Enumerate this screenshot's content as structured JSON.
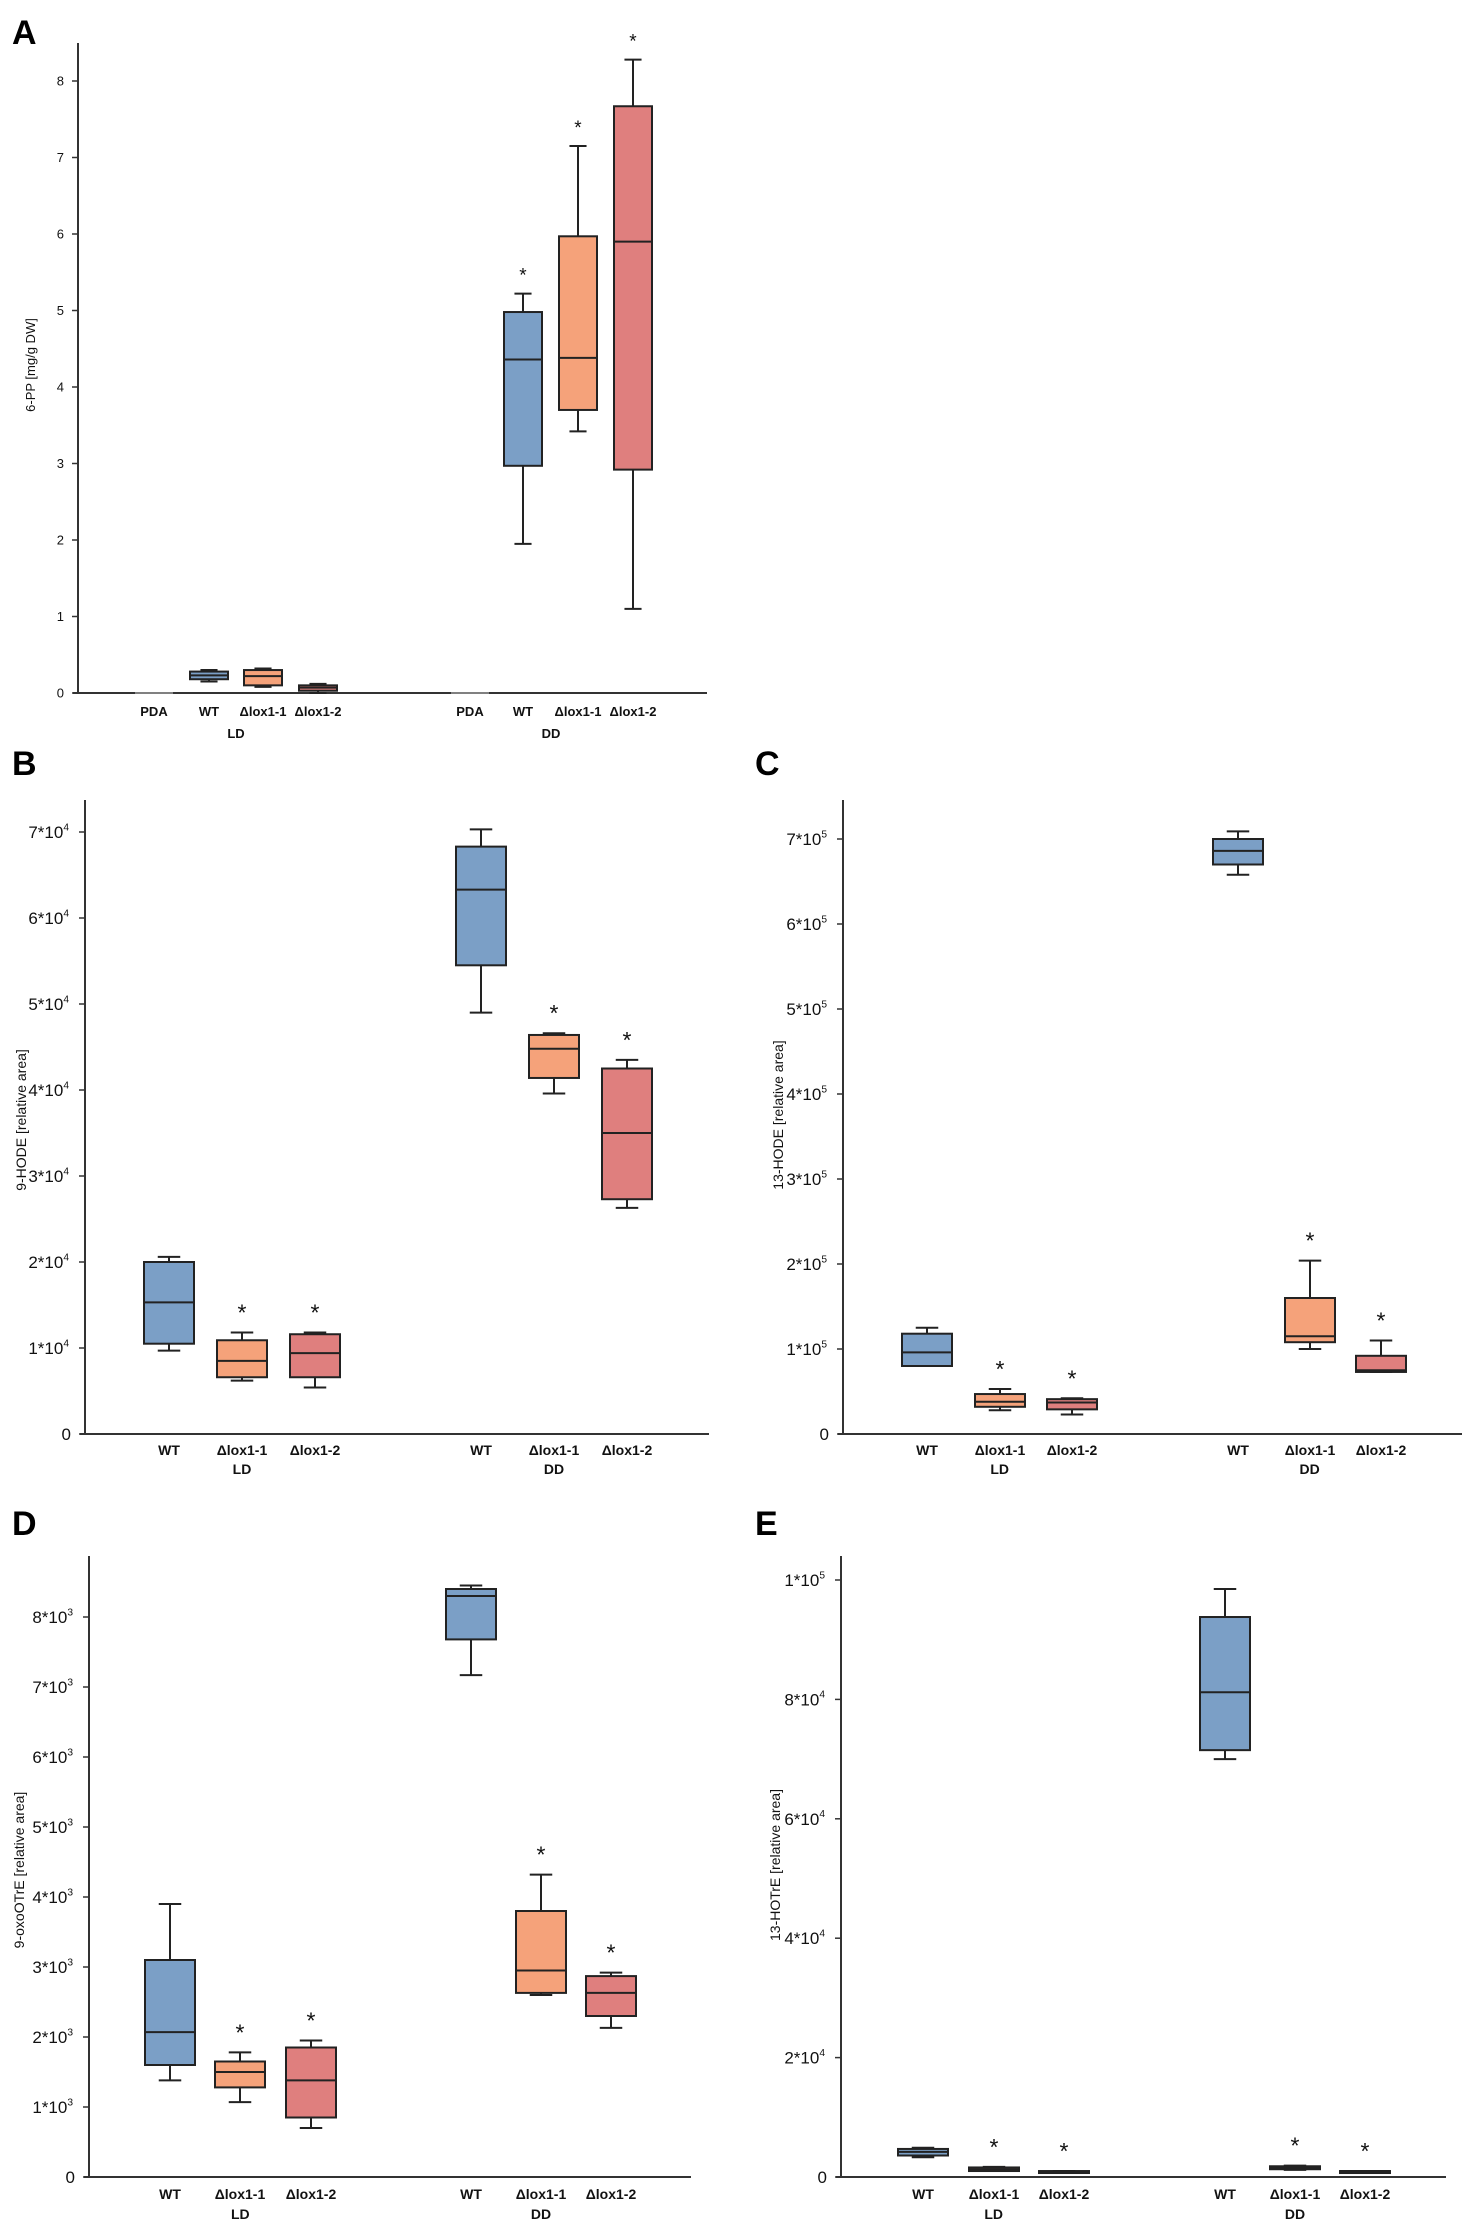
{
  "colors": {
    "WT": "#7b9fc6",
    "lox1-1": "#f5a27a",
    "lox1-2": "#df7f7e",
    "PDA": "#999999"
  },
  "chart_data": [
    {
      "panel": "A",
      "type": "box",
      "ylabel": "6-PP [mg/g DW]",
      "ylim": [
        0,
        8.5
      ],
      "ticks": [
        0,
        1,
        2,
        3,
        4,
        5,
        6,
        7,
        8
      ],
      "tick_labels": [
        "0",
        "1",
        "2",
        "3",
        "4",
        "5",
        "6",
        "7",
        "8"
      ],
      "groups": [
        {
          "label": "LD",
          "boxes": [
            {
              "name": "PDA",
              "label": "PDA",
              "color": "PDA",
              "stats": [
                0,
                0,
                0,
                0,
                0
              ],
              "sig": false
            },
            {
              "name": "WT",
              "label": "WT",
              "color": "WT",
              "stats": [
                0.15,
                0.18,
                0.23,
                0.28,
                0.3
              ],
              "sig": false
            },
            {
              "name": "lox1-1",
              "label": "Δlox1-1",
              "color": "lox1-1",
              "stats": [
                0.08,
                0.1,
                0.22,
                0.3,
                0.32
              ],
              "sig": false
            },
            {
              "name": "lox1-2",
              "label": "Δlox1-2",
              "color": "lox1-2",
              "stats": [
                0.0,
                0.03,
                0.07,
                0.1,
                0.12
              ],
              "sig": false
            }
          ]
        },
        {
          "label": "DD",
          "boxes": [
            {
              "name": "PDA",
              "label": "PDA",
              "color": "PDA",
              "stats": [
                0,
                0,
                0,
                0,
                0
              ],
              "sig": false
            },
            {
              "name": "WT",
              "label": "WT",
              "color": "WT",
              "stats": [
                1.95,
                2.97,
                4.36,
                4.98,
                5.22
              ],
              "sig": true
            },
            {
              "name": "lox1-1",
              "label": "Δlox1-1",
              "color": "lox1-1",
              "stats": [
                3.42,
                3.7,
                4.38,
                5.97,
                7.15
              ],
              "sig": true
            },
            {
              "name": "lox1-2",
              "label": "Δlox1-2",
              "color": "lox1-2",
              "stats": [
                1.1,
                2.92,
                5.9,
                7.67,
                8.28
              ],
              "sig": true
            }
          ]
        }
      ]
    },
    {
      "panel": "B",
      "type": "box",
      "ylabel": "9-HODE [relative area]",
      "ylim": [
        0,
        74000
      ],
      "ticks": [
        0,
        10000,
        20000,
        30000,
        40000,
        50000,
        60000,
        70000
      ],
      "tick_labels": [
        "0",
        "1*10^4",
        "2*10^4",
        "3*10^4",
        "4*10^4",
        "5*10^4",
        "6*10^4",
        "7*10^4"
      ],
      "groups": [
        {
          "label": "LD",
          "boxes": [
            {
              "name": "WT",
              "label": "WT",
              "color": "WT",
              "stats": [
                9700,
                10500,
                15300,
                20000,
                20600
              ],
              "sig": false
            },
            {
              "name": "lox1-1",
              "label": "Δlox1-1",
              "color": "lox1-1",
              "stats": [
                6200,
                6600,
                8500,
                10900,
                11800
              ],
              "sig": true
            },
            {
              "name": "lox1-2",
              "label": "Δlox1-2",
              "color": "lox1-2",
              "stats": [
                5400,
                6600,
                9400,
                11600,
                11800
              ],
              "sig": true
            }
          ]
        },
        {
          "label": "DD",
          "boxes": [
            {
              "name": "WT",
              "label": "WT",
              "color": "WT",
              "stats": [
                49000,
                54500,
                63300,
                68300,
                70300
              ],
              "sig": false
            },
            {
              "name": "lox1-1",
              "label": "Δlox1-1",
              "color": "lox1-1",
              "stats": [
                39600,
                41400,
                44800,
                46400,
                46600
              ],
              "sig": true
            },
            {
              "name": "lox1-2",
              "label": "Δlox1-2",
              "color": "lox1-2",
              "stats": [
                26300,
                27300,
                35000,
                42500,
                43500
              ],
              "sig": true
            }
          ]
        }
      ]
    },
    {
      "panel": "C",
      "type": "box",
      "ylabel": "13-HODE [relative area]",
      "ylim": [
        0,
        740000
      ],
      "ticks": [
        0,
        100000,
        200000,
        300000,
        400000,
        500000,
        600000,
        700000
      ],
      "tick_labels": [
        "0",
        "1*10^5",
        "2*10^5",
        "3*10^5",
        "4*10^5",
        "5*10^5",
        "6*10^5",
        "7*10^5"
      ],
      "groups": [
        {
          "label": "LD",
          "boxes": [
            {
              "name": "WT",
              "label": "WT",
              "color": "WT",
              "stats": [
                80000,
                80000,
                96000,
                118000,
                125000
              ],
              "sig": false
            },
            {
              "name": "lox1-1",
              "label": "Δlox1-1",
              "color": "lox1-1",
              "stats": [
                28000,
                32000,
                38000,
                47000,
                53000
              ],
              "sig": true
            },
            {
              "name": "lox1-2",
              "label": "Δlox1-2",
              "color": "lox1-2",
              "stats": [
                23000,
                29000,
                37000,
                41000,
                42000
              ],
              "sig": true
            }
          ]
        },
        {
          "label": "DD",
          "boxes": [
            {
              "name": "WT",
              "label": "WT",
              "color": "WT",
              "stats": [
                658000,
                670000,
                686000,
                700000,
                709000
              ],
              "sig": false
            },
            {
              "name": "lox1-1",
              "label": "Δlox1-1",
              "color": "lox1-1",
              "stats": [
                100000,
                108000,
                115000,
                160000,
                204000
              ],
              "sig": true
            },
            {
              "name": "lox1-2",
              "label": "Δlox1-2",
              "color": "lox1-2",
              "stats": [
                73000,
                73000,
                75000,
                92000,
                110000
              ],
              "sig": true
            }
          ]
        }
      ]
    },
    {
      "panel": "D",
      "type": "box",
      "ylabel": "9-oxoOTrE [relative area]",
      "ylim": [
        0,
        8800
      ],
      "ticks": [
        0,
        1000,
        2000,
        3000,
        4000,
        5000,
        6000,
        7000,
        8000
      ],
      "tick_labels": [
        "0",
        "1*10^3",
        "2*10^3",
        "3*10^3",
        "4*10^3",
        "5*10^3",
        "6*10^3",
        "7*10^3",
        "8*10^3"
      ],
      "groups": [
        {
          "label": "LD",
          "boxes": [
            {
              "name": "WT",
              "label": "WT",
              "color": "WT",
              "stats": [
                1380,
                1600,
                2070,
                3100,
                3900
              ],
              "sig": false
            },
            {
              "name": "lox1-1",
              "label": "Δlox1-1",
              "color": "lox1-1",
              "stats": [
                1070,
                1280,
                1500,
                1650,
                1780
              ],
              "sig": true
            },
            {
              "name": "lox1-2",
              "label": "Δlox1-2",
              "color": "lox1-2",
              "stats": [
                700,
                850,
                1380,
                1850,
                1950
              ],
              "sig": true
            }
          ]
        },
        {
          "label": "DD",
          "boxes": [
            {
              "name": "WT",
              "label": "WT",
              "color": "WT",
              "stats": [
                7170,
                7680,
                8300,
                8400,
                8450
              ],
              "sig": false
            },
            {
              "name": "lox1-1",
              "label": "Δlox1-1",
              "color": "lox1-1",
              "stats": [
                2600,
                2630,
                2950,
                3800,
                4320
              ],
              "sig": true
            },
            {
              "name": "lox1-2",
              "label": "Δlox1-2",
              "color": "lox1-2",
              "stats": [
                2130,
                2300,
                2630,
                2870,
                2920
              ],
              "sig": true
            }
          ]
        }
      ]
    },
    {
      "panel": "E",
      "type": "box",
      "ylabel": "13-HOTrE [relative area]",
      "ylim": [
        0,
        104000
      ],
      "ticks": [
        0,
        20000,
        40000,
        60000,
        80000,
        100000
      ],
      "tick_labels": [
        "0",
        "2*10^4",
        "4*10^4",
        "6*10^4",
        "8*10^4",
        "1*10^5"
      ],
      "groups": [
        {
          "label": "LD",
          "boxes": [
            {
              "name": "WT",
              "label": "WT",
              "color": "WT",
              "stats": [
                3300,
                3600,
                4200,
                4700,
                4900
              ],
              "sig": false
            },
            {
              "name": "lox1-1",
              "label": "Δlox1-1",
              "color": "lox1-1",
              "stats": [
                1000,
                1000,
                1300,
                1600,
                1700
              ],
              "sig": true
            },
            {
              "name": "lox1-2",
              "label": "Δlox1-2",
              "color": "lox1-2",
              "stats": [
                800,
                800,
                900,
                1000,
                1000
              ],
              "sig": true
            }
          ]
        },
        {
          "label": "DD",
          "boxes": [
            {
              "name": "WT",
              "label": "WT",
              "color": "WT",
              "stats": [
                70000,
                71500,
                81200,
                93800,
                98500
              ],
              "sig": false
            },
            {
              "name": "lox1-1",
              "label": "Δlox1-1",
              "color": "lox1-1",
              "stats": [
                1200,
                1300,
                1500,
                1800,
                1900
              ],
              "sig": true
            },
            {
              "name": "lox1-2",
              "label": "Δlox1-2",
              "color": "lox1-2",
              "stats": [
                900,
                900,
                1000,
                1000,
                1000
              ],
              "sig": true
            }
          ]
        }
      ]
    }
  ],
  "significance_marker": "*"
}
